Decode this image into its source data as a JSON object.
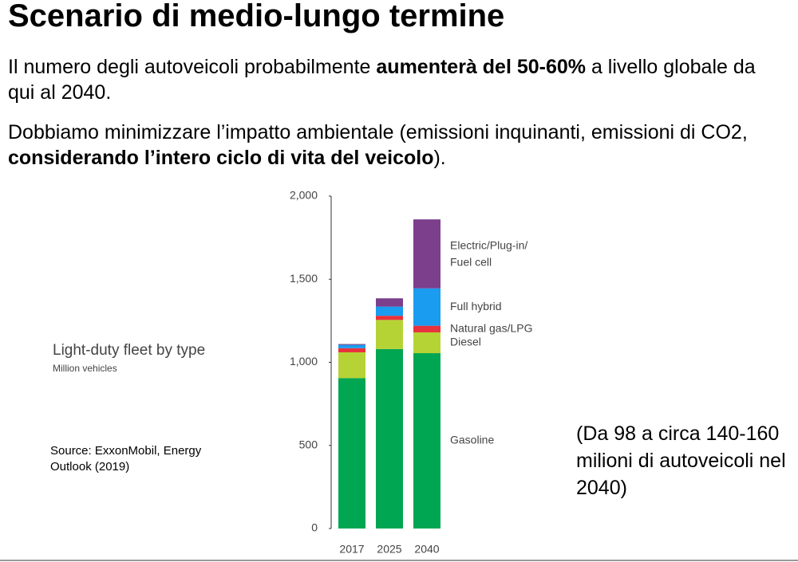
{
  "slide": {
    "title": "Scenario di medio-lungo termine",
    "paragraphs": [
      [
        {
          "text": "Il numero degli autoveicoli probabilmente ",
          "bold": false
        },
        {
          "text": "aumenterà del 50-60%",
          "bold": true
        },
        {
          "text": " a livello globale da qui al 2040.",
          "bold": false
        }
      ],
      [
        {
          "text": "Dobbiamo minimizzare l’impatto ambientale (emissioni inquinanti, emissioni di CO2, ",
          "bold": false
        },
        {
          "text": "considerando l’intero ciclo di vita del veicolo",
          "bold": true
        },
        {
          "text": ").",
          "bold": false
        }
      ]
    ],
    "source": "Source: ExxonMobil, Energy Outlook (2019)",
    "note": "(Da 98 a circa 140-160 milioni di autoveicoli nel 2040)"
  },
  "chart_data": {
    "type": "stacked_bar",
    "title": "Light-duty fleet by type",
    "subtitle": "Million vehicles",
    "categories": [
      "2017",
      "2025",
      "2040"
    ],
    "series": [
      {
        "name": "Gasoline",
        "color": "#00a651",
        "values": [
          905,
          1080,
          1055
        ]
      },
      {
        "name": "Diesel",
        "color": "#b5d334",
        "values": [
          155,
          175,
          125
        ]
      },
      {
        "name": "Natural gas/LPG",
        "color": "#e8323c",
        "values": [
          25,
          25,
          40
        ]
      },
      {
        "name": "Full hybrid",
        "color": "#1a9cf0",
        "values": [
          20,
          55,
          225
        ]
      },
      {
        "name": "Electric/Plug-in/Fuel cell",
        "color": "#7b3f8c",
        "values": [
          5,
          50,
          415
        ]
      }
    ],
    "ylim": [
      0,
      2000
    ],
    "yticks": [
      0,
      500,
      {
        "value": 1000,
        "label": "1,000"
      },
      {
        "value": 1500,
        "label": "1,500"
      },
      {
        "value": 2000,
        "label": "2,000"
      }
    ],
    "grid": false
  }
}
